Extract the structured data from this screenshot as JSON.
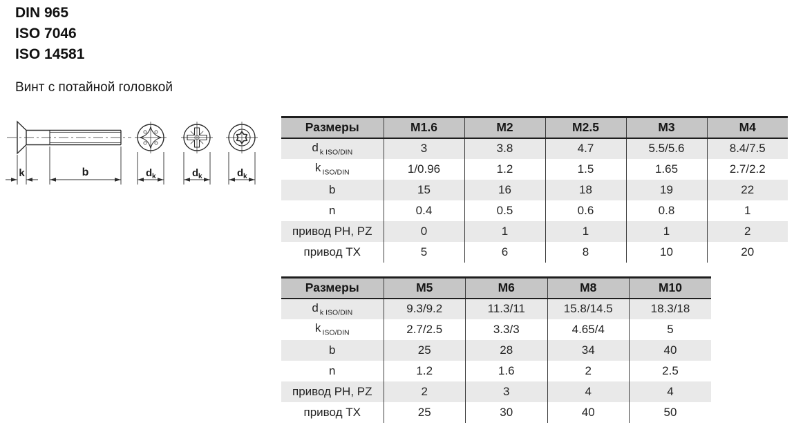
{
  "standards": {
    "line1": "DIN 965",
    "line2": "ISO 7046",
    "line3": "ISO 14581"
  },
  "subtitle": "Винт с потайной головкой",
  "drawing": {
    "dim_k": "k",
    "dim_b": "b",
    "dim_d_main": "d",
    "dim_d_sub": "k"
  },
  "colors": {
    "header_bg": "#c6c6c6",
    "shaded_row_bg": "#e9e9e9",
    "table_border": "#1f1f1f",
    "grid_line": "#3a3a3a",
    "text": "#242424"
  },
  "tables": [
    {
      "header": [
        "Размеры",
        "M1.6",
        "M2",
        "M2.5",
        "M3",
        "M4"
      ],
      "rows": [
        {
          "label_main": "d",
          "label_sub": "k ISO/DIN",
          "shaded": true,
          "values": [
            "3",
            "3.8",
            "4.7",
            "5.5/5.6",
            "8.4/7.5"
          ]
        },
        {
          "label_main": "k",
          "label_sub": "ISO/DIN",
          "shaded": false,
          "values": [
            "1/0.96",
            "1.2",
            "1.5",
            "1.65",
            "2.7/2.2"
          ]
        },
        {
          "label_main": "b",
          "label_sub": "",
          "shaded": true,
          "values": [
            "15",
            "16",
            "18",
            "19",
            "22"
          ]
        },
        {
          "label_main": "n",
          "label_sub": "",
          "shaded": false,
          "values": [
            "0.4",
            "0.5",
            "0.6",
            "0.8",
            "1"
          ]
        },
        {
          "label_main": "привод PH, PZ",
          "label_sub": "",
          "shaded": true,
          "values": [
            "0",
            "1",
            "1",
            "1",
            "2"
          ]
        },
        {
          "label_main": "привод TX",
          "label_sub": "",
          "shaded": false,
          "values": [
            "5",
            "6",
            "8",
            "10",
            "20"
          ]
        }
      ]
    },
    {
      "header": [
        "Размеры",
        "M5",
        "M6",
        "M8",
        "M10"
      ],
      "rows": [
        {
          "label_main": "d",
          "label_sub": "k ISO/DIN",
          "shaded": true,
          "values": [
            "9.3/9.2",
            "11.3/11",
            "15.8/14.5",
            "18.3/18"
          ]
        },
        {
          "label_main": "k",
          "label_sub": "ISO/DIN",
          "shaded": false,
          "values": [
            "2.7/2.5",
            "3.3/3",
            "4.65/4",
            "5"
          ]
        },
        {
          "label_main": "b",
          "label_sub": "",
          "shaded": true,
          "values": [
            "25",
            "28",
            "34",
            "40"
          ]
        },
        {
          "label_main": "n",
          "label_sub": "",
          "shaded": false,
          "values": [
            "1.2",
            "1.6",
            "2",
            "2.5"
          ]
        },
        {
          "label_main": "привод PH, PZ",
          "label_sub": "",
          "shaded": true,
          "values": [
            "2",
            "3",
            "4",
            "4"
          ]
        },
        {
          "label_main": "привод TX",
          "label_sub": "",
          "shaded": false,
          "values": [
            "25",
            "30",
            "40",
            "50"
          ]
        }
      ]
    }
  ]
}
